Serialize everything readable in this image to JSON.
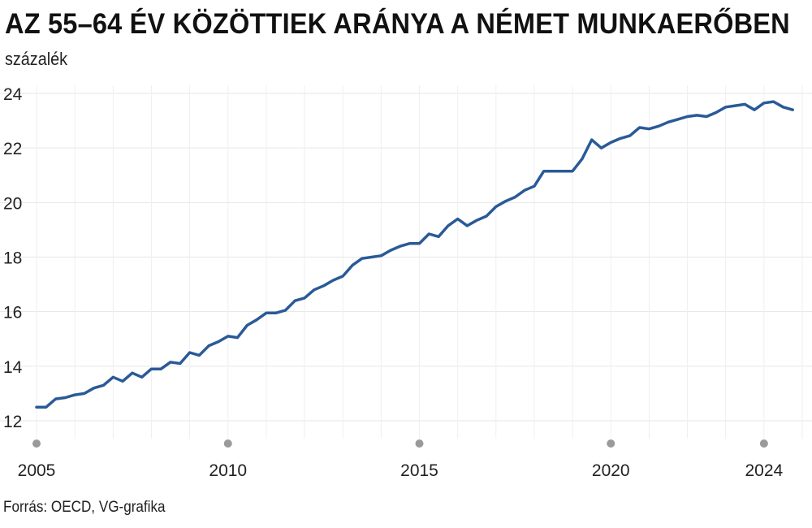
{
  "title": "AZ 55–64 ÉV KÖZÖTTIEK ARÁNYA A NÉMET MUNKAERŐBEN",
  "unit_label": "százalék",
  "source": "Forrás: OECD, VG-grafika",
  "colors": {
    "line": "#2a5a97",
    "grid": "#e6e6e6",
    "marker": "#9a9a9a"
  },
  "chart_data": {
    "type": "line",
    "title": "AZ 55–64 ÉV KÖZÖTTIEK ARÁNYA A NÉMET MUNKAERŐBEN",
    "ylabel": "százalék",
    "xlabel": "",
    "ylim": [
      12,
      24
    ],
    "xlim": [
      2005.0,
      2025.0
    ],
    "y_ticks": [
      12,
      14,
      16,
      18,
      20,
      22,
      24
    ],
    "x_ticks": [
      2005,
      2010,
      2015,
      2020,
      2024
    ],
    "grid": true,
    "legend": "none",
    "series": [
      {
        "x": [
          2005.0,
          2005.25,
          2005.5,
          2005.75,
          2006.0,
          2006.25,
          2006.5,
          2006.75,
          2007.0,
          2007.25,
          2007.5,
          2007.75,
          2008.0,
          2008.25,
          2008.5,
          2008.75,
          2009.0,
          2009.25,
          2009.5,
          2009.75,
          2010.0,
          2010.25,
          2010.5,
          2010.75,
          2011.0,
          2011.25,
          2011.5,
          2011.75,
          2012.0,
          2012.25,
          2012.5,
          2012.75,
          2013.0,
          2013.25,
          2013.5,
          2013.75,
          2014.0,
          2014.25,
          2014.5,
          2014.75,
          2015.0,
          2015.25,
          2015.5,
          2015.75,
          2016.0,
          2016.25,
          2016.5,
          2016.75,
          2017.0,
          2017.25,
          2017.5,
          2017.75,
          2018.0,
          2018.25,
          2018.5,
          2018.75,
          2019.0,
          2019.25,
          2019.5,
          2019.75,
          2020.0,
          2020.25,
          2020.5,
          2020.75,
          2021.0,
          2021.25,
          2021.5,
          2021.75,
          2022.0,
          2022.25,
          2022.5,
          2022.75,
          2023.0,
          2023.25,
          2023.5,
          2023.75,
          2024.0,
          2024.25,
          2024.5,
          2024.75
        ],
        "values": [
          12.5,
          12.5,
          12.8,
          12.85,
          12.95,
          13.0,
          13.2,
          13.3,
          13.6,
          13.45,
          13.75,
          13.6,
          13.9,
          13.9,
          14.15,
          14.1,
          14.5,
          14.4,
          14.75,
          14.9,
          15.1,
          15.05,
          15.5,
          15.7,
          15.95,
          15.95,
          16.05,
          16.4,
          16.5,
          16.8,
          16.95,
          17.15,
          17.3,
          17.7,
          17.95,
          18.0,
          18.05,
          18.25,
          18.4,
          18.5,
          18.5,
          18.85,
          18.75,
          19.15,
          19.4,
          19.15,
          19.35,
          19.5,
          19.85,
          20.05,
          20.2,
          20.45,
          20.6,
          21.15,
          21.15,
          21.15,
          21.15,
          21.6,
          22.3,
          22.0,
          22.2,
          22.35,
          22.45,
          22.75,
          22.7,
          22.8,
          22.95,
          23.05,
          23.15,
          23.2,
          23.15,
          23.3,
          23.5,
          23.55,
          23.6,
          23.4,
          23.65,
          23.7,
          23.5,
          23.4
        ]
      }
    ]
  }
}
